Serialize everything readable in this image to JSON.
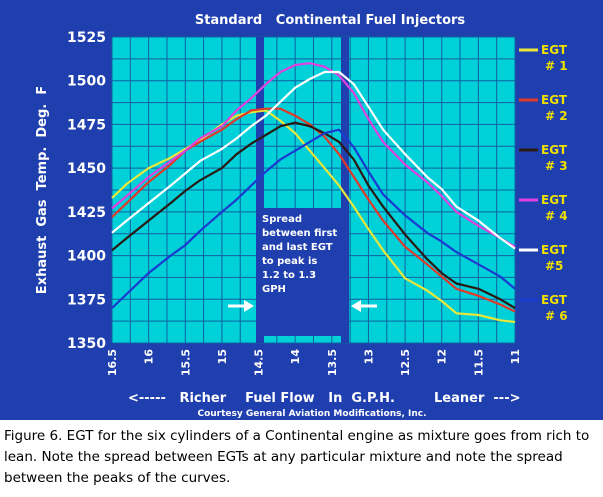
{
  "caption": "Figure 6. EGT for the six cylinders of a Continental engine as mixture goes from rich to lean. Note the spread between EGTs at any particular mixture and note the spread between the peaks of the curves.",
  "chart_data": {
    "type": "line",
    "title": "Standard   Continental Fuel Injectors",
    "ylabel": "Exhaust  Gas  Temp.  Deg.  F",
    "xlabel": "Fuel Flow   In  G.P.H.",
    "xlabel_left": "<-----   Richer",
    "xlabel_right": "Leaner  --->",
    "credit": "Courtesy General Aviation Modifications, Inc.",
    "annotation": "Spread between first and last EGT to peak is 1.2 to 1.3 GPH",
    "x_reversed": true,
    "xlim": [
      16.5,
      11.0
    ],
    "ylim": [
      1350,
      1525
    ],
    "x_ticks": [
      "16.5",
      "16",
      "15.5",
      "15",
      "14.5",
      "14",
      "13.5",
      "13",
      "12.5",
      "12",
      "11.5",
      "11"
    ],
    "y_ticks": [
      "1525",
      "1500",
      "1475",
      "1450",
      "1425",
      "1400",
      "1375",
      "1350"
    ],
    "grid": true,
    "legend_position": "right",
    "highlight_bands_x": [
      14.48,
      13.32
    ],
    "colors": {
      "plot_bg": "#00d0d8",
      "frame": "#1f3fae",
      "grid": "#1060a0",
      "text": "#ffffff",
      "legend_text": "#f0e000",
      "annotation_box": "#1f3fae"
    },
    "series": [
      {
        "name": "EGT # 1",
        "color": "#e8e83a",
        "x": [
          16.5,
          16.3,
          16.0,
          15.7,
          15.5,
          15.3,
          15.0,
          14.8,
          14.6,
          14.4,
          14.2,
          14.0,
          13.8,
          13.6,
          13.4,
          13.2,
          13.0,
          12.8,
          12.5,
          12.2,
          12.0,
          11.8,
          11.5,
          11.2,
          11.0
        ],
        "y": [
          1433,
          1441,
          1450,
          1456,
          1461,
          1466,
          1475,
          1480,
          1482,
          1483,
          1477,
          1470,
          1460,
          1450,
          1440,
          1428,
          1415,
          1403,
          1387,
          1380,
          1374,
          1367,
          1366,
          1363,
          1362
        ]
      },
      {
        "name": "EGT # 2",
        "color": "#e03a2a",
        "x": [
          16.5,
          16.3,
          16.0,
          15.7,
          15.5,
          15.3,
          15.0,
          14.8,
          14.6,
          14.4,
          14.2,
          14.0,
          13.8,
          13.6,
          13.4,
          13.2,
          13.0,
          12.8,
          12.5,
          12.2,
          12.0,
          11.8,
          11.5,
          11.2,
          11.0
        ],
        "y": [
          1422,
          1430,
          1442,
          1452,
          1460,
          1465,
          1472,
          1478,
          1483,
          1484,
          1484,
          1480,
          1475,
          1468,
          1458,
          1445,
          1432,
          1420,
          1405,
          1395,
          1388,
          1381,
          1377,
          1372,
          1368
        ]
      },
      {
        "name": "EGT # 3",
        "color": "#2a1a14",
        "x": [
          16.5,
          16.3,
          16.0,
          15.7,
          15.5,
          15.3,
          15.0,
          14.8,
          14.6,
          14.4,
          14.2,
          14.0,
          13.8,
          13.6,
          13.4,
          13.2,
          13.0,
          12.8,
          12.5,
          12.2,
          12.0,
          11.8,
          11.5,
          11.2,
          11.0
        ],
        "y": [
          1403,
          1410,
          1420,
          1430,
          1437,
          1443,
          1450,
          1458,
          1464,
          1469,
          1474,
          1476,
          1474,
          1470,
          1465,
          1455,
          1440,
          1428,
          1412,
          1398,
          1390,
          1384,
          1381,
          1375,
          1370
        ]
      },
      {
        "name": "EGT # 4",
        "color": "#e040e0",
        "x": [
          16.5,
          16.3,
          16.0,
          15.7,
          15.5,
          15.3,
          15.0,
          14.8,
          14.6,
          14.4,
          14.2,
          14.0,
          13.8,
          13.6,
          13.4,
          13.2,
          13.0,
          12.8,
          12.5,
          12.2,
          12.0,
          11.8,
          11.5,
          11.2,
          11.0
        ],
        "y": [
          1427,
          1434,
          1445,
          1454,
          1460,
          1467,
          1474,
          1483,
          1490,
          1498,
          1505,
          1509,
          1510,
          1508,
          1503,
          1493,
          1478,
          1465,
          1452,
          1442,
          1434,
          1425,
          1417,
          1410,
          1405
        ]
      },
      {
        "name": "EGT #5",
        "color": "#ffffff",
        "x": [
          16.5,
          16.3,
          16.0,
          15.7,
          15.5,
          15.3,
          15.0,
          14.8,
          14.6,
          14.4,
          14.2,
          14.0,
          13.8,
          13.6,
          13.4,
          13.2,
          13.0,
          12.8,
          12.5,
          12.2,
          12.0,
          11.8,
          11.5,
          11.2,
          11.0
        ],
        "y": [
          1413,
          1420,
          1430,
          1440,
          1447,
          1454,
          1461,
          1467,
          1474,
          1480,
          1488,
          1496,
          1501,
          1505,
          1505,
          1498,
          1485,
          1472,
          1458,
          1445,
          1438,
          1428,
          1420,
          1410,
          1404
        ]
      },
      {
        "name": "EGT # 6",
        "color": "#1a3ad0",
        "x": [
          16.5,
          16.3,
          16.0,
          15.7,
          15.5,
          15.3,
          15.0,
          14.8,
          14.6,
          14.4,
          14.2,
          14.0,
          13.8,
          13.6,
          13.4,
          13.2,
          13.0,
          12.8,
          12.5,
          12.2,
          12.0,
          11.8,
          11.5,
          11.2,
          11.0
        ],
        "y": [
          1370,
          1378,
          1390,
          1400,
          1406,
          1414,
          1425,
          1432,
          1440,
          1448,
          1455,
          1460,
          1465,
          1470,
          1472,
          1462,
          1448,
          1435,
          1423,
          1413,
          1408,
          1402,
          1395,
          1388,
          1381
        ]
      }
    ]
  }
}
